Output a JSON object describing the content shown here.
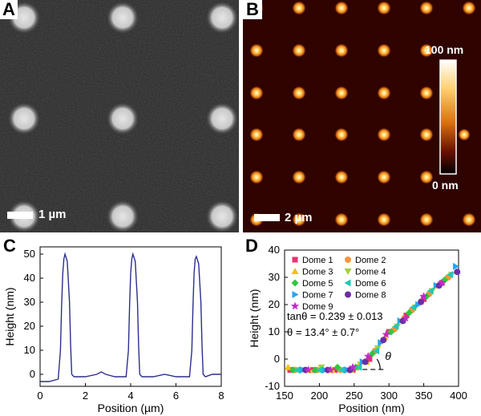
{
  "panels": {
    "A": {
      "letter": "A",
      "scale_bar_label": "1 µm"
    },
    "B": {
      "letter": "B",
      "scale_bar_label": "2 µm",
      "colorbar_max": "100 nm",
      "colorbar_min": "0 nm"
    },
    "C": {
      "letter": "C"
    },
    "D": {
      "letter": "D"
    }
  },
  "colors": {
    "dome1": "#e8336d",
    "dome2": "#f5963c",
    "dome3": "#f2c012",
    "dome4": "#a4d233",
    "dome5": "#2fc93b",
    "dome6": "#1ec9b8",
    "dome7": "#26a6e8",
    "dome8": "#6a2ea8",
    "dome9": "#c02bc9",
    "profile_line": "#2b2f8c"
  },
  "chart_data": [
    {
      "type": "line",
      "panel": "C",
      "xlabel": "Position (µm)",
      "ylabel": "Height (nm)",
      "xlim": [
        0,
        8
      ],
      "ylim": [
        -5,
        53
      ],
      "xticks": [
        0,
        2,
        4,
        6,
        8
      ],
      "yticks": [
        0,
        10,
        20,
        30,
        40,
        50
      ],
      "series": [
        {
          "x": [
            0,
            0.4,
            0.8,
            0.9,
            0.95,
            1.0,
            1.05,
            1.1,
            1.2,
            1.3,
            1.35,
            1.4,
            1.5,
            2.0,
            2.5,
            2.7,
            2.9,
            3.3,
            3.8,
            3.9,
            3.95,
            4.0,
            4.05,
            4.1,
            4.2,
            4.3,
            4.35,
            4.4,
            4.5,
            5.0,
            5.5,
            6.0,
            6.6,
            6.7,
            6.75,
            6.8,
            6.85,
            6.9,
            7.0,
            7.1,
            7.15,
            7.2,
            7.3,
            7.6,
            8.0
          ],
          "y": [
            -3,
            -3,
            -2,
            10,
            28,
            42,
            48,
            50,
            47,
            30,
            12,
            0,
            -1,
            -1,
            0,
            1,
            0,
            -1,
            -1,
            10,
            28,
            42,
            48,
            50,
            47,
            30,
            12,
            0,
            -1,
            -1,
            0,
            -1,
            -1,
            10,
            28,
            42,
            48,
            49,
            46,
            30,
            12,
            0,
            -1,
            0,
            0
          ]
        }
      ]
    },
    {
      "type": "scatter",
      "panel": "D",
      "xlabel": "Position (nm)",
      "ylabel": "Height (nm)",
      "xlim": [
        150,
        400
      ],
      "ylim": [
        -10,
        40
      ],
      "xticks": [
        150,
        200,
        250,
        300,
        350,
        400
      ],
      "yticks": [
        -10,
        0,
        10,
        20,
        30,
        40
      ],
      "annotations": [
        "tanθ =  0.239 ± 0.013",
        "θ = 13.4° ± 0.7°",
        "θ"
      ],
      "series": [
        {
          "name": "Dome 1",
          "marker": "square",
          "color": "#e8336d",
          "x": [
            158,
            190,
            222,
            248,
            272,
            300,
            325,
            350,
            376
          ],
          "y": [
            -4,
            -4,
            -4,
            -4,
            0,
            10,
            16,
            22,
            28
          ]
        },
        {
          "name": "Dome 2",
          "marker": "circle",
          "color": "#f5963c",
          "x": [
            165,
            197,
            230,
            255,
            280,
            308,
            333,
            358,
            385
          ],
          "y": [
            -4,
            -4,
            -4,
            -3,
            3,
            11,
            18,
            24,
            30
          ]
        },
        {
          "name": "Dome 3",
          "marker": "triangle-up",
          "color": "#f2c012",
          "x": [
            155,
            186,
            218,
            245,
            268,
            294,
            320,
            345,
            370
          ],
          "y": [
            -3,
            -4,
            -4,
            -4,
            -1,
            8,
            15,
            21,
            27
          ]
        },
        {
          "name": "Dome 4",
          "marker": "triangle-down",
          "color": "#a4d233",
          "x": [
            172,
            203,
            235,
            259,
            284,
            312,
            338,
            362,
            390
          ],
          "y": [
            -4,
            -3,
            -4,
            -2,
            4,
            12,
            19,
            25,
            31
          ]
        },
        {
          "name": "Dome 5",
          "marker": "diamond",
          "color": "#2fc93b",
          "x": [
            162,
            194,
            226,
            252,
            276,
            303,
            329,
            354,
            380
          ],
          "y": [
            -4,
            -4,
            -3,
            -3,
            2,
            10,
            17,
            23,
            29
          ]
        },
        {
          "name": "Dome 6",
          "marker": "triangle-left",
          "color": "#1ec9b8",
          "x": [
            168,
            200,
            232,
            257,
            282,
            310,
            335,
            360,
            388
          ],
          "y": [
            -4,
            -4,
            -4,
            -3,
            3,
            12,
            19,
            25,
            31
          ]
        },
        {
          "name": "Dome 7",
          "marker": "triangle-right",
          "color": "#26a6e8",
          "x": [
            176,
            208,
            240,
            262,
            288,
            316,
            342,
            368,
            396
          ],
          "y": [
            -4,
            -4,
            -4,
            -1,
            6,
            14,
            20,
            27,
            34
          ]
        },
        {
          "name": "Dome 8",
          "marker": "circle",
          "color": "#6a2ea8",
          "x": [
            180,
            212,
            244,
            266,
            292,
            320,
            346,
            372,
            398
          ],
          "y": [
            -4,
            -4,
            -4,
            -1,
            7,
            14,
            21,
            27,
            32
          ]
        },
        {
          "name": "Dome 9",
          "marker": "star",
          "color": "#c02bc9",
          "x": [
            184,
            216,
            248,
            270,
            296,
            324,
            350,
            376
          ],
          "y": [
            -4,
            -4,
            -3,
            1,
            9,
            15,
            23,
            28
          ]
        }
      ]
    }
  ]
}
